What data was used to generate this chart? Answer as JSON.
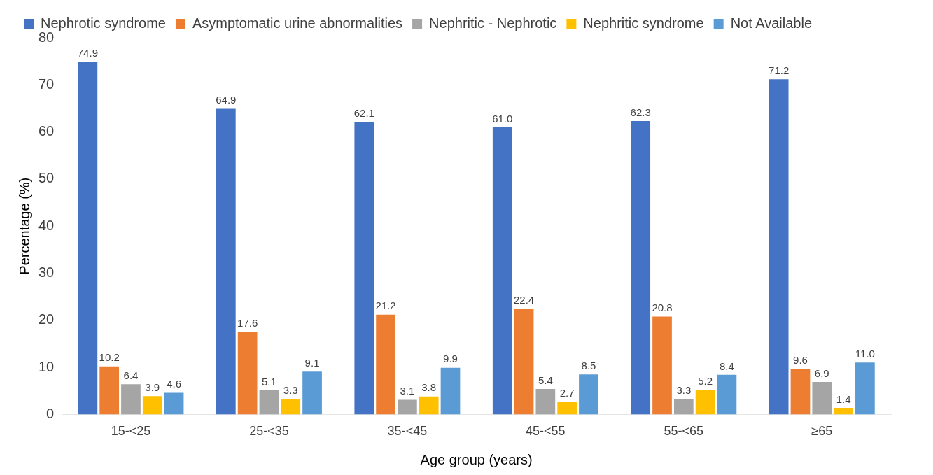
{
  "chart_data": {
    "type": "bar",
    "xlabel": "Age group (years)",
    "ylabel": "Percentage (%)",
    "categories": [
      "15-<25",
      "25-<35",
      "35-<45",
      "45-<55",
      "55-<65",
      "≥65"
    ],
    "series": [
      {
        "name": "Nephrotic syndrome",
        "color": "#4472c4",
        "values": [
          74.9,
          64.9,
          62.1,
          61.0,
          62.3,
          71.2
        ],
        "value_labels": [
          "74.9",
          "64.9",
          "62.1",
          "61.0",
          "62.3",
          "71.2"
        ]
      },
      {
        "name": "Asymptomatic urine abnormalities",
        "color": "#ed7d31",
        "values": [
          10.2,
          17.6,
          21.2,
          22.4,
          20.8,
          9.6
        ],
        "value_labels": [
          "10.2",
          "17.6",
          "21.2",
          "22.4",
          "20.8",
          "9.6"
        ]
      },
      {
        "name": "Nephritic - Nephrotic",
        "color": "#a5a5a5",
        "values": [
          6.4,
          5.1,
          3.1,
          5.4,
          3.3,
          6.9
        ],
        "value_labels": [
          "6.4",
          "5.1",
          "3.1",
          "5.4",
          "3.3",
          "6.9"
        ]
      },
      {
        "name": "Nephritic syndrome",
        "color": "#ffc000",
        "values": [
          3.9,
          3.3,
          3.8,
          2.7,
          5.2,
          1.4
        ],
        "value_labels": [
          "3.9",
          "3.3",
          "3.8",
          "2.7",
          "5.2",
          "1.4"
        ]
      },
      {
        "name": "Not Available",
        "color": "#5b9bd5",
        "values": [
          4.6,
          9.1,
          9.9,
          8.5,
          8.4,
          11.0
        ],
        "value_labels": [
          "4.6",
          "9.1",
          "9.9",
          "8.5",
          "8.4",
          "11.0"
        ]
      }
    ],
    "ylim": [
      0,
      80
    ],
    "yticks": [
      0,
      10,
      20,
      30,
      40,
      50,
      60,
      70,
      80
    ],
    "grid": false,
    "legend": "top"
  }
}
